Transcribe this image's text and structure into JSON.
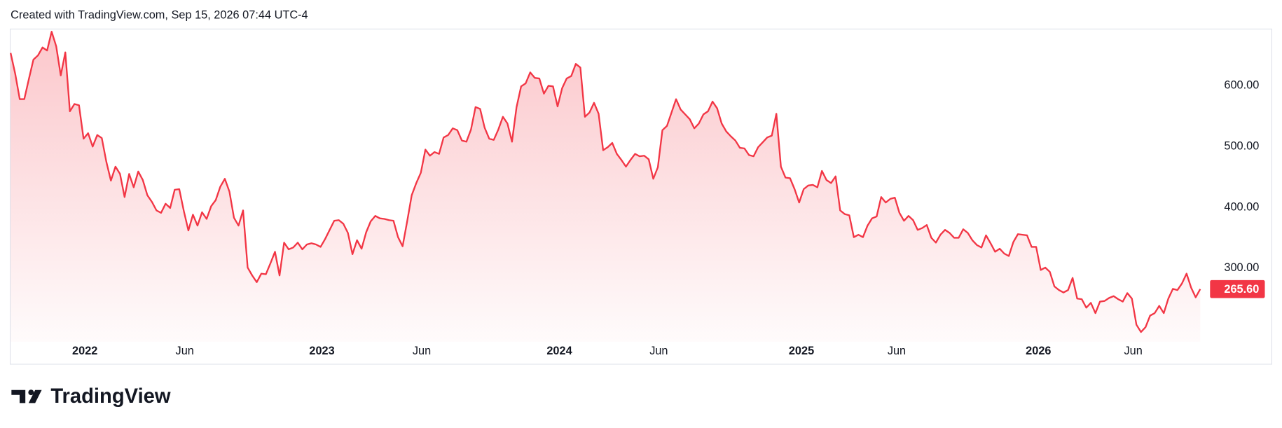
{
  "header": "Created with TradingView.com, Sep 15, 2026 07:44 UTC-4",
  "brand": "TradingView",
  "chart_data": {
    "type": "line",
    "color": "#f23645",
    "values": [
      654,
      620,
      578,
      578,
      611,
      643,
      650,
      663,
      658,
      689,
      665,
      617,
      655,
      558,
      570,
      568,
      513,
      522,
      500,
      519,
      514,
      475,
      444,
      467,
      455,
      417,
      455,
      433,
      459,
      445,
      420,
      409,
      395,
      391,
      406,
      399,
      429,
      430,
      394,
      362,
      388,
      370,
      392,
      381,
      402,
      412,
      434,
      447,
      426,
      383,
      370,
      395,
      301,
      288,
      277,
      291,
      290,
      308,
      327,
      288,
      342,
      331,
      334,
      342,
      331,
      339,
      341,
      339,
      335,
      348,
      363,
      378,
      379,
      373,
      358,
      323,
      346,
      332,
      359,
      377,
      386,
      382,
      381,
      379,
      378,
      351,
      336,
      377,
      420,
      440,
      457,
      495,
      485,
      491,
      488,
      515,
      519,
      530,
      527,
      510,
      508,
      528,
      565,
      562,
      531,
      513,
      511,
      528,
      549,
      538,
      508,
      565,
      599,
      604,
      622,
      613,
      612,
      587,
      600,
      599,
      566,
      596,
      612,
      616,
      636,
      630,
      549,
      556,
      572,
      554,
      494,
      499,
      506,
      488,
      478,
      467,
      478,
      488,
      484,
      485,
      479,
      447,
      466,
      527,
      534,
      556,
      578,
      561,
      553,
      545,
      530,
      538,
      553,
      558,
      574,
      563,
      538,
      525,
      517,
      510,
      498,
      497,
      486,
      484,
      499,
      507,
      515,
      518,
      554,
      467,
      449,
      448,
      430,
      408,
      430,
      436,
      437,
      433,
      460,
      445,
      440,
      451,
      395,
      389,
      387,
      351,
      355,
      351,
      370,
      382,
      385,
      417,
      408,
      414,
      416,
      391,
      378,
      386,
      379,
      363,
      366,
      371,
      350,
      342,
      355,
      363,
      358,
      350,
      350,
      364,
      358,
      346,
      338,
      334,
      354,
      341,
      327,
      332,
      324,
      320,
      343,
      356,
      355,
      354,
      335,
      335,
      297,
      301,
      294,
      270,
      264,
      260,
      264,
      284,
      250,
      249,
      235,
      243,
      226,
      245,
      246,
      251,
      254,
      249,
      245,
      259,
      250,
      207,
      195,
      203,
      222,
      226,
      238,
      226,
      250,
      266,
      264,
      275,
      291,
      268,
      252,
      265.6
    ],
    "last_price": {
      "value": 265.6,
      "label": "265.60"
    },
    "ylim": [
      179,
      694
    ],
    "yticks": [
      {
        "value": 300,
        "label": "300.00"
      },
      {
        "value": 400,
        "label": "400.00"
      },
      {
        "value": 500,
        "label": "500.00"
      },
      {
        "value": 600,
        "label": "600.00"
      }
    ],
    "xlim": [
      0,
      261
    ],
    "xticks": [
      {
        "value": 16.3,
        "label": "2022"
      },
      {
        "value": 38.2,
        "label": "Jun"
      },
      {
        "value": 68.3,
        "label": "2023"
      },
      {
        "value": 90.2,
        "label": "Jun"
      },
      {
        "value": 120.4,
        "label": "2024"
      },
      {
        "value": 142.2,
        "label": "Jun"
      },
      {
        "value": 173.5,
        "label": "2025"
      },
      {
        "value": 194.4,
        "label": "Jun"
      },
      {
        "value": 225.5,
        "label": "2026"
      },
      {
        "value": 246.3,
        "label": "Jun"
      }
    ],
    "grid": false
  }
}
